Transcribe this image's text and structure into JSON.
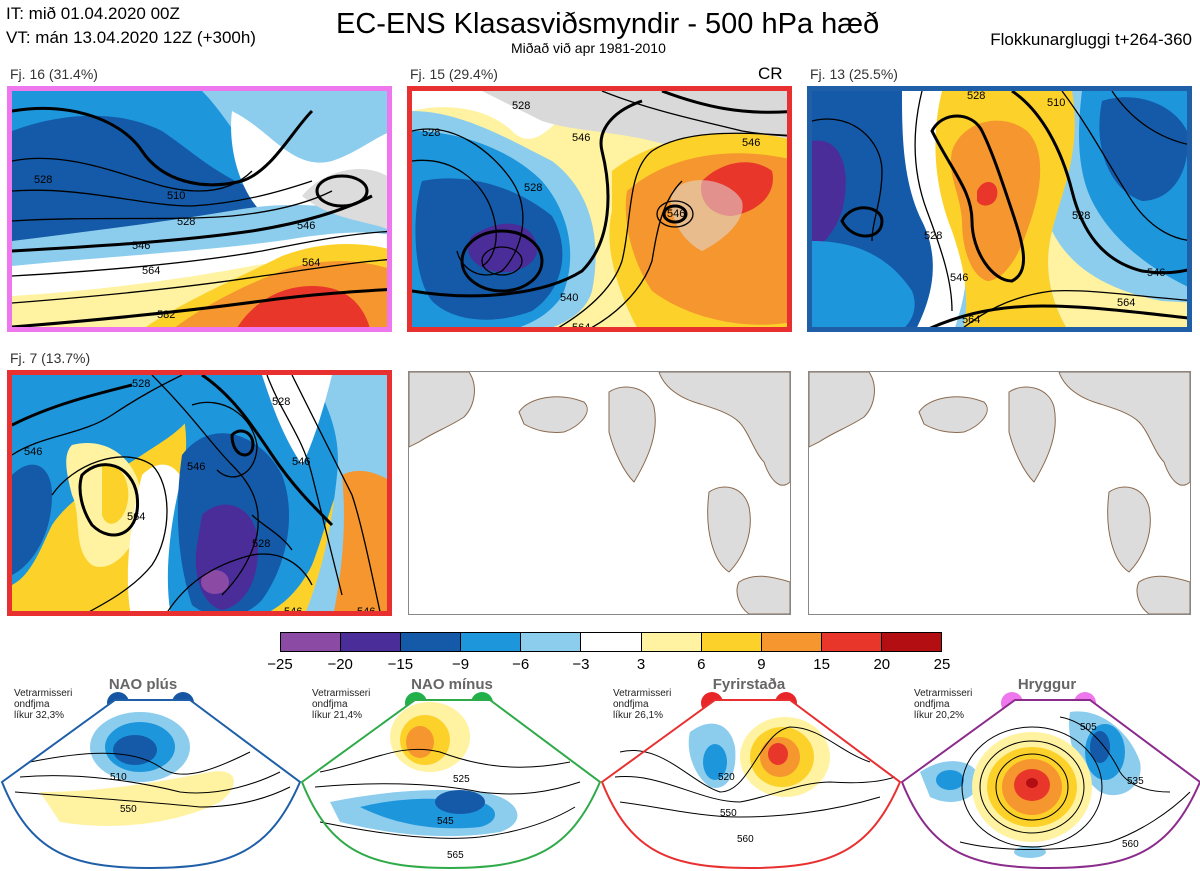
{
  "header": {
    "init_time": "IT: mið 01.04.2020 00Z",
    "valid_time": "VT: mán 13.04.2020 12Z  (+300h)",
    "title": "EC-ENS Klasasviðsmyndir - 500 hPa hæð",
    "subtitle": "Miðað við apr 1981-2010",
    "window": "Flokkunargluggi t+264-360"
  },
  "panels": [
    {
      "label": "Fj. 16 (31.4%)",
      "frame_color": "#ee77ee",
      "contours": [
        "528",
        "510",
        "528",
        "546",
        "564",
        "582",
        "546",
        "564"
      ]
    },
    {
      "label": "Fj. 15 (29.4%)",
      "frame_color": "#e83030",
      "tag": "CR",
      "contours": [
        "528",
        "546",
        "546",
        "528",
        "546",
        "528",
        "540",
        "564"
      ]
    },
    {
      "label": "Fj. 13 (25.5%)",
      "frame_color": "#1f5fa8",
      "contours": [
        "528",
        "510",
        "528",
        "528",
        "546",
        "546",
        "564",
        "564"
      ]
    },
    {
      "label": "Fj. 7 (13.7%)",
      "frame_color": "#e83030",
      "contours": [
        "528",
        "528",
        "546",
        "546",
        "564",
        "546",
        "528",
        "546",
        "546"
      ]
    }
  ],
  "colorbar": {
    "colors": [
      "#8b4aa3",
      "#4b2d9a",
      "#145aa8",
      "#1e96dc",
      "#8ccdee",
      "#ffffff",
      "#fff2a0",
      "#fcd22a",
      "#f5962e",
      "#e8362a",
      "#b30f12"
    ],
    "ticks": [
      "−25",
      "−20",
      "−15",
      "−9",
      "−6",
      "−3",
      "3",
      "6",
      "9",
      "15",
      "20",
      "25"
    ]
  },
  "regimes": [
    {
      "name": "NAO plús",
      "note": "Vetrarmisseri\nondfjma\nlíkur 32,3%",
      "color": "#1f5fa8",
      "dot_color": "#1655a4",
      "contours": [
        "510",
        "550"
      ]
    },
    {
      "name": "NAO mínus",
      "note": "Vetrarmisseri\nondfjma\nlíkur 21,4%",
      "color": "#2faa48",
      "dot_color": "#22b04a",
      "contours": [
        "525",
        "545",
        "565"
      ]
    },
    {
      "name": "Fyrirstaða",
      "note": "Vetrarmisseri\nondfjma\nlíkur 26,1%",
      "color": "#e83030",
      "dot_color": "#e8262a",
      "contours": [
        "520",
        "550",
        "560"
      ]
    },
    {
      "name": "Hryggur",
      "note": "Vetrarmisseri\nondfjma\nlíkur 20,2%",
      "color": "#8b2b8b",
      "dot_color": "#ee77ee",
      "contours": [
        "505",
        "535",
        "560"
      ]
    }
  ]
}
